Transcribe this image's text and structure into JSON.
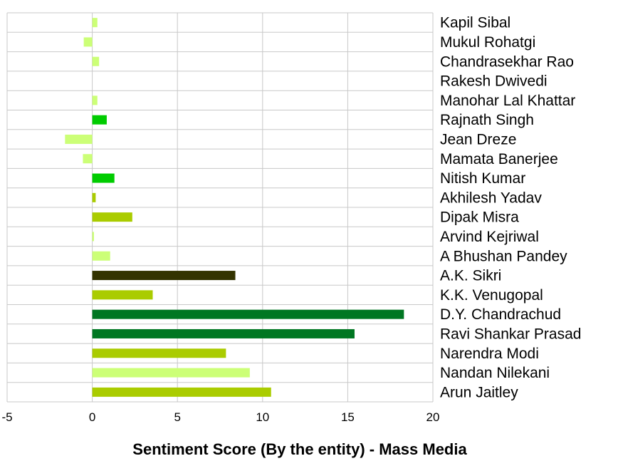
{
  "chart_data": {
    "type": "bar",
    "orientation": "horizontal",
    "xlabel": "Sentiment Score (By the entity) - Mass Media",
    "xlim": [
      -5,
      20
    ],
    "xticks": [
      -5,
      0,
      5,
      10,
      15,
      20
    ],
    "grid": true,
    "categories": [
      "Kapil Sibal",
      "Mukul Rohatgi",
      "Chandrasekhar Rao",
      "Rakesh Dwivedi",
      "Manohar Lal Khattar",
      "Rajnath Singh",
      "Jean Dreze",
      "Mamata Banerjee",
      "Nitish Kumar",
      "Akhilesh Yadav",
      "Dipak Misra",
      "Arvind Kejriwal",
      "A  Bhushan Pandey",
      "A.K. Sikri",
      "K.K. Venugopal",
      "D.Y. Chandrachud",
      "Ravi Shankar Prasad",
      "Narendra Modi",
      "Nandan Nilekani",
      "Arun Jaitley"
    ],
    "values": [
      0.3,
      -0.5,
      0.4,
      0.0,
      0.3,
      0.85,
      -1.6,
      -0.55,
      1.3,
      0.2,
      2.35,
      0.1,
      1.05,
      8.4,
      3.55,
      18.3,
      15.4,
      7.85,
      9.25,
      10.5
    ],
    "colors": [
      "#ccff77",
      "#ccff77",
      "#ccff77",
      "#ccff77",
      "#ccff77",
      "#00cc00",
      "#ccff77",
      "#ccff77",
      "#00cc00",
      "#aacc00",
      "#aacc00",
      "#ccff77",
      "#ccff77",
      "#333300",
      "#aacc00",
      "#007722",
      "#007722",
      "#aacc00",
      "#ccff77",
      "#aacc00"
    ]
  }
}
